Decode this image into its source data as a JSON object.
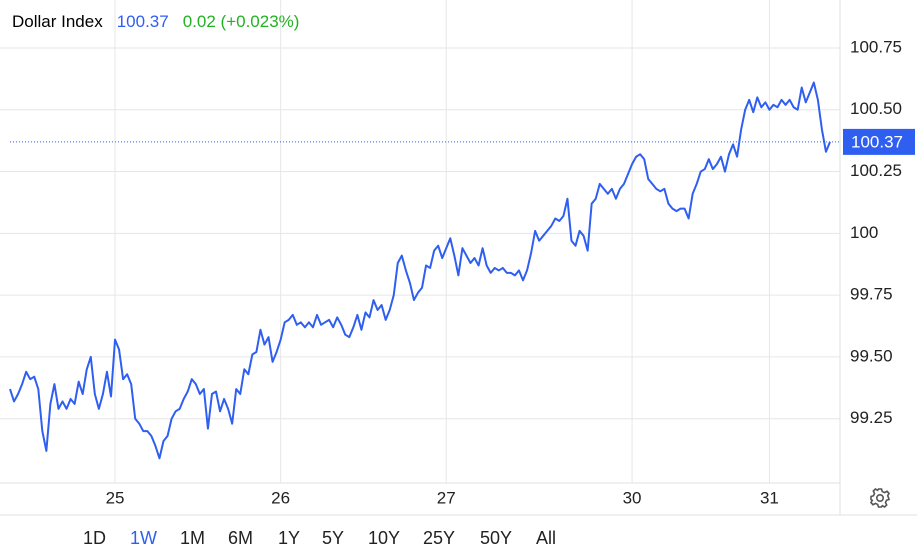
{
  "chart_data": {
    "type": "line",
    "title": "Dollar Index",
    "last_price": 100.37,
    "change": "0.02 (+0.023%)",
    "color": "#2f5ff0",
    "change_color": "#22b322",
    "values": [
      99.37,
      99.32,
      99.35,
      99.39,
      99.44,
      99.41,
      99.42,
      99.37,
      99.2,
      99.12,
      99.31,
      99.39,
      99.29,
      99.32,
      99.29,
      99.33,
      99.31,
      99.4,
      99.35,
      99.45,
      99.5,
      99.35,
      99.29,
      99.35,
      99.44,
      99.34,
      99.57,
      99.53,
      99.41,
      99.43,
      99.39,
      99.25,
      99.23,
      99.2,
      99.2,
      99.18,
      99.14,
      99.09,
      99.16,
      99.18,
      99.25,
      99.28,
      99.29,
      99.33,
      99.36,
      99.41,
      99.39,
      99.35,
      99.37,
      99.21,
      99.35,
      99.36,
      99.28,
      99.33,
      99.29,
      99.23,
      99.37,
      99.35,
      99.45,
      99.43,
      99.51,
      99.52,
      99.61,
      99.55,
      99.58,
      99.48,
      99.52,
      99.57,
      99.64,
      99.65,
      99.67,
      99.63,
      99.64,
      99.62,
      99.64,
      99.62,
      99.67,
      99.63,
      99.64,
      99.65,
      99.62,
      99.66,
      99.63,
      99.59,
      99.58,
      99.62,
      99.67,
      99.61,
      99.68,
      99.66,
      99.73,
      99.69,
      99.71,
      99.65,
      99.69,
      99.75,
      99.88,
      99.91,
      99.85,
      99.8,
      99.73,
      99.76,
      99.78,
      99.87,
      99.86,
      99.93,
      99.95,
      99.9,
      99.94,
      99.98,
      99.91,
      99.83,
      99.94,
      99.91,
      99.88,
      99.9,
      99.87,
      99.94,
      99.87,
      99.84,
      99.86,
      99.85,
      99.86,
      99.84,
      99.84,
      99.83,
      99.85,
      99.81,
      99.85,
      99.92,
      100.01,
      99.97,
      99.99,
      100.01,
      100.03,
      100.06,
      100.05,
      100.07,
      100.14,
      99.97,
      99.95,
      100.01,
      99.99,
      99.93,
      100.12,
      100.14,
      100.2,
      100.18,
      100.16,
      100.18,
      100.14,
      100.18,
      100.2,
      100.24,
      100.28,
      100.31,
      100.32,
      100.3,
      100.22,
      100.2,
      100.18,
      100.17,
      100.18,
      100.12,
      100.1,
      100.09,
      100.1,
      100.1,
      100.06,
      100.16,
      100.2,
      100.25,
      100.26,
      100.3,
      100.26,
      100.28,
      100.31,
      100.25,
      100.32,
      100.36,
      100.31,
      100.42,
      100.5,
      100.54,
      100.49,
      100.55,
      100.51,
      100.53,
      100.5,
      100.52,
      100.51,
      100.54,
      100.52,
      100.54,
      100.51,
      100.5,
      100.59,
      100.53,
      100.57,
      100.61,
      100.54,
      100.42,
      100.33,
      100.37
    ],
    "xlim": [
      0,
      203
    ],
    "xticks": [
      {
        "value": 26,
        "label": "25"
      },
      {
        "value": 67,
        "label": "26"
      },
      {
        "value": 108,
        "label": "27"
      },
      {
        "value": 154,
        "label": "30"
      },
      {
        "value": 188,
        "label": "31"
      }
    ],
    "ylim": [
      98.99,
      100.944
    ],
    "yticks": [
      {
        "value": 99.25,
        "label": "99.25"
      },
      {
        "value": 99.5,
        "label": "99.50"
      },
      {
        "value": 99.75,
        "label": "99.75"
      },
      100,
      {
        "value": 100.25,
        "label": "100.25"
      },
      {
        "value": 100.5,
        "label": "100.50"
      },
      {
        "value": 100.75,
        "label": "100.75"
      }
    ],
    "grid": true,
    "range_buttons": [
      "1D",
      "1W",
      "1M",
      "6M",
      "1Y",
      "5Y",
      "10Y",
      "25Y",
      "50Y",
      "All"
    ],
    "selected_range": "1W"
  }
}
